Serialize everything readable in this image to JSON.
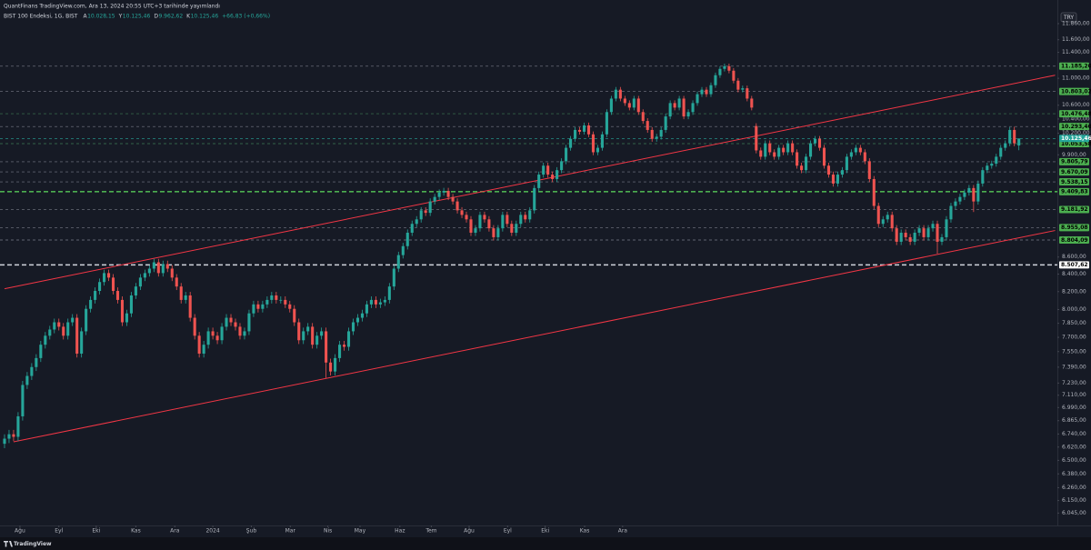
{
  "chart_data": {
    "type": "candlestick",
    "title": "QuantFinans TradingView.com, Ara 13, 2024 20:55 UTC+3 tarihinde yayımlandı",
    "legend": {
      "symbol": "BIST 100 Endeksi, 1G, BIST",
      "fields": [
        {
          "key": "A",
          "value": "10.028,15"
        },
        {
          "key": "Y",
          "value": "10.125,46"
        },
        {
          "key": "D",
          "value": "9.962,62"
        },
        {
          "key": "K",
          "value": "10.125,46"
        }
      ],
      "change": "+66,83 (+0,66%)"
    },
    "currency": "TRY",
    "brand": "TradingView",
    "log_scale": true,
    "grid": false,
    "up_color": "#26a69a",
    "down_color": "#ef5350",
    "xlim": [
      -1,
      232.5
    ],
    "ylim": [
      5950,
      12100
    ],
    "xticks": [
      {
        "value": 3.4,
        "label": "Ağu"
      },
      {
        "value": 12,
        "label": "Eyl"
      },
      {
        "value": 20.25,
        "label": "Eki"
      },
      {
        "value": 29,
        "label": "Kas"
      },
      {
        "value": 37.6,
        "label": "Ara"
      },
      {
        "value": 46,
        "label": "2024"
      },
      {
        "value": 54.5,
        "label": "Şub"
      },
      {
        "value": 63.1,
        "label": "Mar"
      },
      {
        "value": 71.4,
        "label": "Nis"
      },
      {
        "value": 78.5,
        "label": "May"
      },
      {
        "value": 87.3,
        "label": "Haz"
      },
      {
        "value": 94.25,
        "label": "Tem"
      },
      {
        "value": 102.6,
        "label": "Ağu"
      },
      {
        "value": 111.1,
        "label": "Eyl"
      },
      {
        "value": 119.4,
        "label": "Eki"
      },
      {
        "value": 128.1,
        "label": "Kas"
      },
      {
        "value": 136.5,
        "label": "Ara"
      }
    ],
    "yticks": [
      {
        "value": 11860,
        "label": "11.860,00"
      },
      {
        "value": 11600,
        "label": "11.600,00"
      },
      {
        "value": 11400,
        "label": "11.400,00"
      },
      {
        "value": 11000,
        "label": "11.000,00"
      },
      {
        "value": 10600,
        "label": "10.600,00"
      },
      {
        "value": 10400,
        "label": "10.400,00"
      },
      {
        "value": 10200,
        "label": "10.200,00"
      },
      {
        "value": 9900,
        "label": "9.900,00"
      },
      {
        "value": 8600,
        "label": "8.600,00"
      },
      {
        "value": 8400,
        "label": "8.400,00"
      },
      {
        "value": 8200,
        "label": "8.200,00"
      },
      {
        "value": 8000,
        "label": "8.000,00"
      },
      {
        "value": 7850,
        "label": "7.850,00"
      },
      {
        "value": 7700,
        "label": "7.700,00"
      },
      {
        "value": 7550,
        "label": "7.550,00"
      },
      {
        "value": 7390,
        "label": "7.390,00"
      },
      {
        "value": 7230,
        "label": "7.230,00"
      },
      {
        "value": 7110,
        "label": "7.110,00"
      },
      {
        "value": 6990,
        "label": "6.990,00"
      },
      {
        "value": 6865,
        "label": "6.865,00"
      },
      {
        "value": 6740,
        "label": "6.740,00"
      },
      {
        "value": 6620,
        "label": "6.620,00"
      },
      {
        "value": 6500,
        "label": "6.500,00"
      },
      {
        "value": 6380,
        "label": "6.380,00"
      },
      {
        "value": 6260,
        "label": "6.260,00"
      },
      {
        "value": 6150,
        "label": "6.150,00"
      },
      {
        "value": 6045,
        "label": "6.045,00"
      }
    ],
    "levels": [
      {
        "value": 11185.2,
        "label": "11.185,20",
        "color": "#787b86",
        "box": "#4caf50",
        "emphasis": false
      },
      {
        "value": 10803.02,
        "label": "10.803,02",
        "color": "#787b86",
        "box": "#4caf50",
        "emphasis": false
      },
      {
        "value": 10476.48,
        "label": "10.476,48",
        "color": "#3d7a55",
        "box": "#4caf50",
        "emphasis": false
      },
      {
        "value": 10293.4,
        "label": "10.293,40",
        "color": "#787b86",
        "box": "#4caf50",
        "emphasis": false
      },
      {
        "value": 10053.58,
        "label": "10.053,58",
        "color": "#3d7a55",
        "box": "#4caf50",
        "emphasis": false
      },
      {
        "value": 9805.79,
        "label": "9.805,79",
        "color": "#787b86",
        "box": "#4caf50",
        "emphasis": false
      },
      {
        "value": 9670.09,
        "label": "9.670,09",
        "color": "#787b86",
        "box": "#4caf50",
        "emphasis": false
      },
      {
        "value": 9538.15,
        "label": "9.538,15",
        "color": "#787b86",
        "box": "#4caf50",
        "emphasis": false
      },
      {
        "value": 9409.83,
        "label": "9.409,83",
        "color": "#4caf50",
        "box": "#4caf50",
        "emphasis": true
      },
      {
        "value": 9181.92,
        "label": "9.181,92",
        "color": "#787b86",
        "box": "#4caf50",
        "emphasis": false
      },
      {
        "value": 8955.08,
        "label": "8.955,08",
        "color": "#787b86",
        "box": "#4caf50",
        "emphasis": false
      },
      {
        "value": 8804.09,
        "label": "8.804,09",
        "color": "#787b86",
        "box": "#4caf50",
        "emphasis": false
      },
      {
        "value": 8507.62,
        "label": "8.507,62",
        "color": "#d1d4dc",
        "box": "#ffffff",
        "emphasis": true
      },
      {
        "value": 10125.46,
        "label": "10.125,46",
        "color": "#26a69a",
        "box": "#26a69a",
        "emphasis": false
      }
    ],
    "trendlines": [
      {
        "from": [
          0,
          8233
        ],
        "to": [
          232,
          11047
        ],
        "color": "#f23645"
      },
      {
        "from": [
          2,
          6668
        ],
        "to": [
          232,
          8920
        ],
        "color": "#f23645"
      }
    ],
    "open": [
      6650,
      6697,
      6738,
      6714,
      6906,
      7211,
      7301,
      7391,
      7483,
      7622,
      7717,
      7783,
      7861,
      7813,
      7717,
      7861,
      7910,
      7529,
      7764,
      8008,
      8107,
      8208,
      8309,
      8412,
      8360,
      8208,
      8107,
      7861,
      7958,
      8157,
      8258,
      8360,
      8412,
      8464,
      8538,
      8412,
      8517,
      8464,
      8360,
      8258,
      8107,
      8157,
      7910,
      7717,
      7529,
      7622,
      7764,
      7717,
      7669,
      7813,
      7910,
      7861,
      7813,
      7717,
      7764,
      7958,
      8057,
      8008,
      8057,
      8107,
      8157,
      8107,
      8107,
      8057,
      8008,
      7861,
      7669,
      7764,
      7813,
      7622,
      7717,
      7764,
      7437,
      7346,
      7483,
      7622,
      7600,
      7764,
      7861,
      7910,
      7958,
      8057,
      8107,
      8057,
      8080,
      8107,
      8258,
      8464,
      8623,
      8730,
      8893,
      9002,
      9058,
      9171,
      9140,
      9284,
      9342,
      9399,
      9420,
      9342,
      9284,
      9171,
      9114,
      9058,
      8893,
      8947,
      9114,
      9058,
      8947,
      8838,
      8947,
      9114,
      9002,
      8893,
      9002,
      9114,
      9058,
      9171,
      9457,
      9634,
      9753,
      9634,
      9575,
      9693,
      9813,
      9996,
      10120,
      10245,
      10220,
      10309,
      10183,
      9935,
      9996,
      10183,
      10500,
      10697,
      10829,
      10697,
      10631,
      10565,
      10697,
      10500,
      10372,
      10245,
      10120,
      10150,
      10245,
      10437,
      10631,
      10565,
      10697,
      10437,
      10500,
      10631,
      10762,
      10829,
      10762,
      10896,
      11047,
      11144,
      11185,
      11116,
      10964,
      10829,
      10850,
      10697,
      10300,
      9960,
      9874,
      10058,
      9935,
      9874,
      9996,
      9935,
      10058,
      9935,
      9753,
      9693,
      9874,
      10058,
      10120,
      9996,
      9753,
      9634,
      9516,
      9634,
      9693,
      9874,
      9935,
      9996,
      9935,
      9813,
      9575,
      9227,
      9002,
      9058,
      9114,
      8947,
      8783,
      8893,
      8838,
      8783,
      8893,
      8947,
      8838,
      8947,
      9002,
      8783,
      8838,
      9058,
      9227,
      9284,
      9342,
      9399,
      9457,
      9284,
      9516,
      9693,
      9753,
      9780,
      9874,
      9996,
      10058,
      10245,
      10028.15
    ],
    "high": [
      6737,
      6778,
      6778,
      6946,
      7251,
      7341,
      7431,
      7523,
      7662,
      7757,
      7823,
      7901,
      7901,
      7853,
      7901,
      7950,
      7950,
      7804,
      8048,
      8147,
      8248,
      8349,
      8452,
      8452,
      8400,
      8248,
      8147,
      7998,
      8197,
      8298,
      8400,
      8452,
      8504,
      8578,
      8578,
      8557,
      8557,
      8504,
      8400,
      8298,
      8197,
      8197,
      7950,
      7757,
      7662,
      7804,
      7804,
      7757,
      7853,
      7950,
      7950,
      7901,
      7853,
      7804,
      7998,
      8097,
      8097,
      8097,
      8147,
      8197,
      8197,
      8147,
      8147,
      8097,
      8048,
      7901,
      7804,
      7853,
      7853,
      7757,
      7804,
      7804,
      7477,
      7523,
      7662,
      7662,
      7804,
      7901,
      7950,
      7998,
      8097,
      8147,
      8147,
      8120,
      8147,
      8298,
      8504,
      8663,
      8770,
      8933,
      9042,
      9098,
      9211,
      9211,
      9324,
      9382,
      9439,
      9460,
      9460,
      9382,
      9324,
      9211,
      9154,
      9098,
      8987,
      9154,
      9154,
      9098,
      8987,
      8987,
      9154,
      9154,
      9042,
      9042,
      9154,
      9154,
      9211,
      9497,
      9674,
      9793,
      9793,
      9674,
      9733,
      9853,
      10036,
      10160,
      10285,
      10285,
      10349,
      10349,
      10223,
      10036,
      10223,
      10540,
      10737,
      10869,
      10869,
      10737,
      10671,
      10737,
      10737,
      10540,
      10412,
      10285,
      10190,
      10285,
      10477,
      10671,
      10671,
      10737,
      10737,
      10540,
      10671,
      10802,
      10869,
      10869,
      10936,
      11087,
      11184,
      11225,
      11225,
      11156,
      11004,
      10890,
      10890,
      10737,
      10340,
      10000,
      10098,
      10098,
      9975,
      10036,
      10036,
      10098,
      10098,
      9975,
      9793,
      9914,
      10098,
      10160,
      10160,
      10036,
      9793,
      9674,
      9674,
      9733,
      9914,
      9975,
      10036,
      10036,
      9975,
      9853,
      9615,
      9267,
      9098,
      9154,
      9154,
      8987,
      8933,
      8933,
      8878,
      8933,
      8987,
      8987,
      8987,
      9042,
      9042,
      8878,
      9098,
      9267,
      9324,
      9382,
      9439,
      9497,
      9497,
      9556,
      9733,
      9793,
      9820,
      9914,
      10036,
      10098,
      10285,
      10290,
      10125.46
    ],
    "low": [
      6610,
      6657,
      6674,
      6674,
      6866,
      7171,
      7261,
      7351,
      7443,
      7582,
      7677,
      7743,
      7773,
      7677,
      7677,
      7821,
      7489,
      7489,
      7724,
      7968,
      8067,
      8168,
      8269,
      8320,
      8168,
      8067,
      7821,
      7821,
      7918,
      8117,
      8218,
      8320,
      8372,
      8424,
      8372,
      8372,
      8424,
      8320,
      8218,
      8067,
      8067,
      7870,
      7677,
      7489,
      7489,
      7582,
      7677,
      7629,
      7629,
      7773,
      7821,
      7773,
      7677,
      7677,
      7724,
      7918,
      7968,
      7968,
      8017,
      8067,
      8067,
      8067,
      8017,
      7968,
      7821,
      7629,
      7629,
      7724,
      7582,
      7582,
      7677,
      7280,
      7306,
      7306,
      7443,
      7560,
      7560,
      7724,
      7821,
      7870,
      7918,
      8017,
      8017,
      8017,
      8040,
      8067,
      8218,
      8424,
      8583,
      8690,
      8853,
      8962,
      9018,
      9100,
      9100,
      9244,
      9302,
      9359,
      9302,
      9244,
      9131,
      9074,
      9018,
      8853,
      8853,
      8907,
      9018,
      8907,
      8798,
      8798,
      8907,
      8962,
      8853,
      8853,
      8962,
      9018,
      9018,
      9131,
      9417,
      9594,
      9594,
      9535,
      9535,
      9653,
      9773,
      9956,
      10080,
      10180,
      10180,
      10143,
      9895,
      9895,
      9956,
      10143,
      10460,
      10657,
      10657,
      10591,
      10525,
      10525,
      10460,
      10332,
      10205,
      10080,
      10080,
      10110,
      10205,
      10397,
      10525,
      10525,
      10397,
      10397,
      10460,
      10591,
      10722,
      10722,
      10722,
      10856,
      11007,
      11104,
      11076,
      10924,
      10789,
      10789,
      10657,
      10525,
      9920,
      9834,
      9834,
      9895,
      9834,
      9834,
      9895,
      9895,
      9895,
      9713,
      9653,
      9653,
      9834,
      10018,
      9956,
      9713,
      9594,
      9476,
      9476,
      9594,
      9653,
      9834,
      9895,
      9895,
      9773,
      9535,
      9187,
      8962,
      8962,
      9018,
      8907,
      8743,
      8743,
      8798,
      8743,
      8743,
      8853,
      8798,
      8798,
      8907,
      8640,
      8743,
      8798,
      9018,
      9187,
      9244,
      9302,
      9359,
      9150,
      9244,
      9476,
      9653,
      9713,
      9740,
      9834,
      9956,
      10018,
      10018,
      9962.62
    ],
    "close": [
      6697,
      6738,
      6714,
      6906,
      7211,
      7301,
      7391,
      7483,
      7622,
      7717,
      7783,
      7861,
      7813,
      7717,
      7861,
      7910,
      7529,
      7764,
      8008,
      8107,
      8208,
      8309,
      8412,
      8360,
      8208,
      8107,
      7861,
      7958,
      8157,
      8258,
      8360,
      8412,
      8464,
      8538,
      8412,
      8517,
      8464,
      8360,
      8258,
      8107,
      8157,
      7910,
      7717,
      7529,
      7622,
      7764,
      7717,
      7669,
      7813,
      7910,
      7861,
      7813,
      7717,
      7764,
      7958,
      8057,
      8008,
      8057,
      8107,
      8157,
      8107,
      8107,
      8057,
      8008,
      7861,
      7669,
      7764,
      7813,
      7622,
      7717,
      7764,
      7437,
      7346,
      7483,
      7622,
      7600,
      7764,
      7861,
      7910,
      7958,
      8057,
      8107,
      8057,
      8080,
      8107,
      8258,
      8464,
      8623,
      8730,
      8893,
      9002,
      9058,
      9171,
      9140,
      9284,
      9342,
      9399,
      9420,
      9342,
      9284,
      9171,
      9114,
      9058,
      8893,
      8947,
      9114,
      9058,
      8947,
      8838,
      8947,
      9114,
      9002,
      8893,
      9002,
      9114,
      9058,
      9171,
      9457,
      9634,
      9753,
      9634,
      9575,
      9693,
      9813,
      9996,
      10120,
      10245,
      10220,
      10309,
      10183,
      9935,
      9996,
      10183,
      10500,
      10697,
      10829,
      10697,
      10631,
      10565,
      10697,
      10500,
      10372,
      10245,
      10120,
      10150,
      10245,
      10437,
      10631,
      10565,
      10697,
      10437,
      10500,
      10631,
      10762,
      10829,
      10762,
      10896,
      11047,
      11144,
      11185,
      11116,
      10964,
      10829,
      10850,
      10697,
      10565,
      9960,
      9874,
      10058,
      9935,
      9874,
      9996,
      9935,
      10058,
      9935,
      9753,
      9693,
      9874,
      10058,
      10120,
      9996,
      9753,
      9634,
      9516,
      9634,
      9693,
      9874,
      9935,
      9996,
      9935,
      9813,
      9575,
      9227,
      9002,
      9058,
      9114,
      8947,
      8783,
      8893,
      8838,
      8783,
      8893,
      8947,
      8838,
      8947,
      9002,
      8783,
      8838,
      9058,
      9227,
      9284,
      9342,
      9399,
      9457,
      9284,
      9516,
      9693,
      9753,
      9780,
      9874,
      9996,
      10058,
      10245,
      10058.63,
      10125.46
    ]
  }
}
